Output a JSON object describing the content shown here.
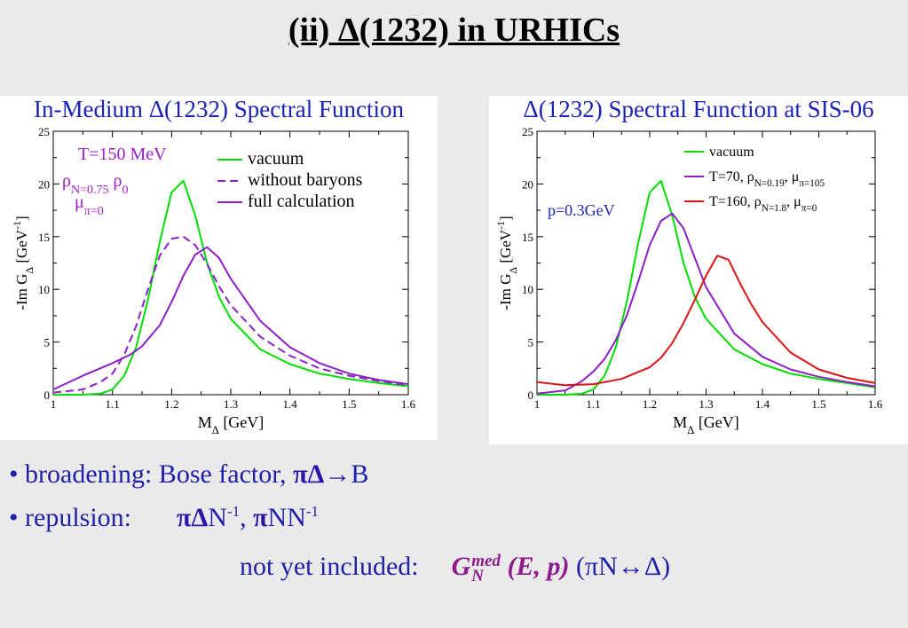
{
  "slide": {
    "title": "(ii)  Δ(1232) in URHICs",
    "bullets": [
      {
        "dot": "•",
        "text": "broadening: Bose factor,",
        "tail_bold": "πΔ",
        "tail": "→B"
      },
      {
        "dot": "•",
        "text": "repulsion:",
        "p1": "πΔ",
        "n1": "N",
        "e1": "-1",
        "sep": ",",
        "p2": "π",
        "n2": "NN",
        "e2": "-1"
      }
    ],
    "note": {
      "label": "not yet included:",
      "G": "G",
      "sup": "med",
      "sub": "N",
      "args": "(E, p)",
      "paren": "(πN↔Δ)"
    }
  },
  "colors": {
    "vacuum": "#00dd00",
    "medium": "#8c1ec8",
    "red": "#dd1111",
    "title_blue": "#1a23b4"
  },
  "chart_data": [
    {
      "type": "line",
      "title": "In-Medium Δ(1232) Spectral Function",
      "xlabel": "M_Δ  [GeV]",
      "ylabel": "-Im G_Δ  [GeV^-1]",
      "xlim": [
        1,
        1.6
      ],
      "ylim": [
        0,
        25
      ],
      "xticks": [
        "1",
        "1.1",
        "1.2",
        "1.3",
        "1.4",
        "1.5",
        "1.6"
      ],
      "yticks": [
        "0",
        "5",
        "10",
        "15",
        "20",
        "25"
      ],
      "annotation": [
        "T=150 MeV",
        "ρN=0.75 ρ0",
        "μπ=0"
      ],
      "legend_position": "top-right",
      "series": [
        {
          "name": "vacuum",
          "style": "solid",
          "color": "#00dd00",
          "x": [
            1.0,
            1.05,
            1.08,
            1.1,
            1.12,
            1.14,
            1.16,
            1.18,
            1.2,
            1.22,
            1.24,
            1.26,
            1.28,
            1.3,
            1.35,
            1.4,
            1.45,
            1.5,
            1.55,
            1.6
          ],
          "y": [
            0,
            0,
            0.1,
            0.5,
            1.8,
            4.5,
            9.0,
            14.5,
            19.2,
            20.3,
            17.0,
            12.5,
            9.3,
            7.2,
            4.3,
            2.9,
            2.0,
            1.5,
            1.1,
            0.8
          ]
        },
        {
          "name": "without baryons",
          "style": "dashed",
          "color": "#8c1ec8",
          "x": [
            1.0,
            1.05,
            1.08,
            1.1,
            1.12,
            1.14,
            1.16,
            1.18,
            1.2,
            1.22,
            1.24,
            1.26,
            1.28,
            1.3,
            1.35,
            1.4,
            1.45,
            1.5,
            1.55,
            1.6
          ],
          "y": [
            0.2,
            0.5,
            1.2,
            2.0,
            3.8,
            6.5,
            10.0,
            13.2,
            14.8,
            15.0,
            14.2,
            12.4,
            10.3,
            8.5,
            5.5,
            3.7,
            2.5,
            1.8,
            1.3,
            0.9
          ]
        },
        {
          "name": "full calculation",
          "style": "solid",
          "color": "#8c1ec8",
          "x": [
            1.0,
            1.05,
            1.1,
            1.13,
            1.15,
            1.18,
            1.2,
            1.22,
            1.24,
            1.26,
            1.28,
            1.3,
            1.35,
            1.4,
            1.45,
            1.5,
            1.55,
            1.6
          ],
          "y": [
            0.5,
            1.8,
            3.0,
            3.8,
            4.6,
            6.6,
            8.8,
            11.3,
            13.3,
            14.0,
            13.0,
            11.0,
            7.0,
            4.5,
            3.0,
            2.0,
            1.4,
            1.0
          ]
        }
      ]
    },
    {
      "type": "line",
      "title": "Δ(1232) Spectral Function at SIS-06",
      "xlabel": "M_Δ  [GeV]",
      "ylabel": "-Im G_Δ  [GeV^-1]",
      "xlim": [
        1,
        1.6
      ],
      "ylim": [
        0,
        25
      ],
      "xticks": [
        "1",
        "1.1",
        "1.2",
        "1.3",
        "1.4",
        "1.5",
        "1.6"
      ],
      "yticks": [
        "0",
        "5",
        "10",
        "15",
        "20",
        "25"
      ],
      "annotation": [
        "p=0.3GeV"
      ],
      "legend_position": "top-right",
      "series": [
        {
          "name": "vacuum",
          "style": "solid",
          "color": "#00dd00",
          "x": [
            1.0,
            1.05,
            1.08,
            1.1,
            1.12,
            1.14,
            1.16,
            1.18,
            1.2,
            1.22,
            1.24,
            1.26,
            1.28,
            1.3,
            1.35,
            1.4,
            1.45,
            1.5,
            1.55,
            1.6
          ],
          "y": [
            0,
            0,
            0.1,
            0.5,
            1.8,
            4.5,
            9.0,
            14.5,
            19.2,
            20.3,
            17.0,
            12.5,
            9.3,
            7.2,
            4.3,
            2.9,
            2.0,
            1.5,
            1.1,
            0.7
          ]
        },
        {
          "name": "T=70, ρN=0.19, μπ=105",
          "style": "solid",
          "color": "#8c1ec8",
          "x": [
            1.0,
            1.05,
            1.08,
            1.1,
            1.12,
            1.14,
            1.16,
            1.18,
            1.2,
            1.22,
            1.24,
            1.26,
            1.28,
            1.3,
            1.35,
            1.4,
            1.45,
            1.5,
            1.55,
            1.6
          ],
          "y": [
            0.1,
            0.4,
            1.3,
            2.2,
            3.4,
            5.2,
            7.6,
            10.8,
            14.2,
            16.5,
            17.2,
            15.8,
            13.0,
            10.2,
            5.8,
            3.6,
            2.4,
            1.7,
            1.2,
            0.8
          ]
        },
        {
          "name": "T=160, ρN=1.8, μπ=0",
          "style": "solid",
          "color": "#dd1111",
          "x": [
            1.0,
            1.05,
            1.1,
            1.15,
            1.2,
            1.22,
            1.24,
            1.26,
            1.28,
            1.3,
            1.32,
            1.34,
            1.36,
            1.38,
            1.4,
            1.45,
            1.5,
            1.55,
            1.6
          ],
          "y": [
            1.2,
            0.9,
            1.0,
            1.5,
            2.6,
            3.5,
            4.9,
            6.8,
            9.0,
            11.3,
            13.2,
            12.8,
            10.6,
            8.6,
            6.9,
            4.0,
            2.4,
            1.6,
            1.1
          ]
        }
      ]
    }
  ]
}
